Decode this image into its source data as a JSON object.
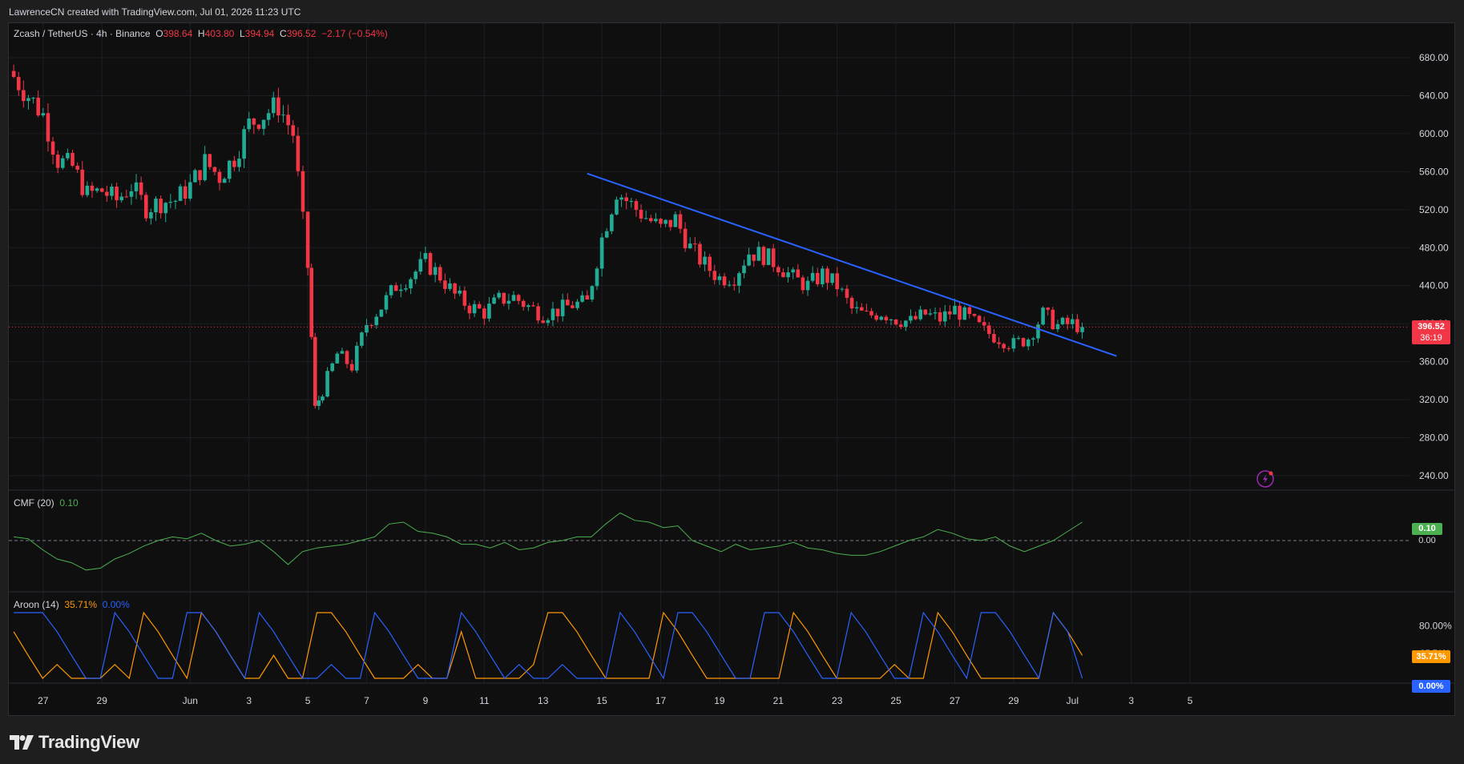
{
  "header": {
    "attribution": "LawrenceCN created with TradingView.com, Jul 01, 2026 11:23 UTC"
  },
  "legend": {
    "symbol": "Zcash / TetherUS · 4h · Binance",
    "o_label": "O",
    "o_value": "398.64",
    "h_label": "H",
    "h_value": "403.80",
    "l_label": "L",
    "l_value": "394.94",
    "c_label": "C",
    "c_value": "396.52",
    "change": "−2.17 (−0.54%)"
  },
  "cmf": {
    "label": "CMF (20)",
    "value": "0.10"
  },
  "aroon": {
    "label": "Aroon (14)",
    "up_value": "35.71%",
    "down_value": "0.00%"
  },
  "price_badge": {
    "price": "396.52",
    "countdown": "36:19"
  },
  "cmf_badges": {
    "value": "0.10",
    "zero": "0.00"
  },
  "aroon_badges": {
    "up": "35.71%",
    "down": "0.00%",
    "hidden_label": "35.71%"
  },
  "colors": {
    "up": "#22ab94",
    "down": "#f23645",
    "trendline": "#2962ff",
    "cmf": "#4caf50",
    "aroon_up": "#ff9800",
    "aroon_down": "#2962ff",
    "background": "#0f0f0f"
  },
  "footer": {
    "brand": "TradingView",
    "logo_icon": "tradingview-logo-icon"
  },
  "alert_icon": "lightning-alert-icon",
  "chart_data": [
    {
      "type": "candlestick",
      "title": "Zcash / TetherUS · 4h · Binance",
      "ylim": [
        220,
        700
      ],
      "y_ticks": [
        240,
        280,
        320,
        360,
        400,
        440,
        480,
        520,
        560,
        600,
        640,
        680
      ],
      "y_tick_labels": [
        "240.00",
        "280.00",
        "320.00",
        "360.00",
        "400.00",
        "440.00",
        "480.00",
        "520.00",
        "560.00",
        "600.00",
        "640.00",
        "680.00"
      ],
      "x_tick_labels": [
        "27",
        "29",
        "Jun",
        "3",
        "5",
        "7",
        "9",
        "11",
        "13",
        "15",
        "17",
        "19",
        "21",
        "23",
        "25",
        "27",
        "29",
        "Jul",
        "3",
        "5"
      ],
      "x_tick_dates": [
        "2026-05-27",
        "2026-05-29",
        "2026-06-01",
        "2026-06-03",
        "2026-06-05",
        "2026-06-07",
        "2026-06-09",
        "2026-06-11",
        "2026-06-13",
        "2026-06-15",
        "2026-06-17",
        "2026-06-19",
        "2026-06-21",
        "2026-06-23",
        "2026-06-25",
        "2026-06-27",
        "2026-06-29",
        "2026-07-01",
        "2026-07-03",
        "2026-07-05"
      ],
      "current_price": 396.52,
      "trendline": {
        "start": [
          "2026-06-14T12:00",
          558
        ],
        "end": [
          "2026-07-02T12:00",
          366
        ]
      },
      "closes": [
        [
          "2026-05-26T00:00",
          660
        ],
        [
          "2026-05-26T12:00",
          640
        ],
        [
          "2026-05-27T00:00",
          620
        ],
        [
          "2026-05-27T12:00",
          572
        ],
        [
          "2026-05-28T00:00",
          565
        ],
        [
          "2026-05-28T12:00",
          536
        ],
        [
          "2026-05-29T00:00",
          540
        ],
        [
          "2026-05-29T12:00",
          530
        ],
        [
          "2026-05-30T00:00",
          545
        ],
        [
          "2026-05-30T12:00",
          522
        ],
        [
          "2026-05-31T00:00",
          528
        ],
        [
          "2026-05-31T12:00",
          530
        ],
        [
          "2026-06-01T00:00",
          545
        ],
        [
          "2026-06-01T12:00",
          570
        ],
        [
          "2026-06-02T00:00",
          555
        ],
        [
          "2026-06-02T12:00",
          575
        ],
        [
          "2026-06-03T00:00",
          610
        ],
        [
          "2026-06-03T12:00",
          620
        ],
        [
          "2026-06-04T00:00",
          630
        ],
        [
          "2026-06-04T12:00",
          600
        ],
        [
          "2026-06-05T00:00",
          460
        ],
        [
          "2026-06-05T06:00",
          310
        ],
        [
          "2026-06-05T12:00",
          330
        ],
        [
          "2026-06-06T00:00",
          368
        ],
        [
          "2026-06-06T12:00",
          355
        ],
        [
          "2026-06-07T00:00",
          400
        ],
        [
          "2026-06-07T12:00",
          418
        ],
        [
          "2026-06-08T00:00",
          440
        ],
        [
          "2026-06-08T12:00",
          450
        ],
        [
          "2026-06-09T00:00",
          465
        ],
        [
          "2026-06-09T12:00",
          450
        ],
        [
          "2026-06-10T00:00",
          430
        ],
        [
          "2026-06-10T12:00",
          418
        ],
        [
          "2026-06-11T00:00",
          412
        ],
        [
          "2026-06-11T12:00",
          425
        ],
        [
          "2026-06-12T00:00",
          428
        ],
        [
          "2026-06-12T12:00",
          418
        ],
        [
          "2026-06-13T00:00",
          410
        ],
        [
          "2026-06-13T12:00",
          414
        ],
        [
          "2026-06-14T00:00",
          420
        ],
        [
          "2026-06-14T12:00",
          422
        ],
        [
          "2026-06-15T00:00",
          490
        ],
        [
          "2026-06-15T12:00",
          540
        ],
        [
          "2026-06-16T00:00",
          525
        ],
        [
          "2026-06-16T12:00",
          512
        ],
        [
          "2026-06-17T00:00",
          500
        ],
        [
          "2026-06-17T12:00",
          510
        ],
        [
          "2026-06-18T00:00",
          480
        ],
        [
          "2026-06-18T12:00",
          462
        ],
        [
          "2026-06-19T00:00",
          448
        ],
        [
          "2026-06-19T12:00",
          450
        ],
        [
          "2026-06-20T00:00",
          475
        ],
        [
          "2026-06-20T12:00",
          472
        ],
        [
          "2026-06-21T00:00",
          462
        ],
        [
          "2026-06-21T12:00",
          448
        ],
        [
          "2026-06-22T00:00",
          440
        ],
        [
          "2026-06-22T12:00",
          452
        ],
        [
          "2026-06-23T00:00",
          440
        ],
        [
          "2026-06-23T12:00",
          415
        ],
        [
          "2026-06-24T00:00",
          408
        ],
        [
          "2026-06-24T12:00",
          412
        ],
        [
          "2026-06-25T00:00",
          405
        ],
        [
          "2026-06-25T12:00",
          402
        ],
        [
          "2026-06-26T00:00",
          410
        ],
        [
          "2026-06-26T12:00",
          405
        ],
        [
          "2026-06-27T00:00",
          415
        ],
        [
          "2026-06-27T12:00",
          405
        ],
        [
          "2026-06-28T00:00",
          392
        ],
        [
          "2026-06-28T12:00",
          385
        ],
        [
          "2026-06-29T00:00",
          378
        ],
        [
          "2026-06-29T12:00",
          385
        ],
        [
          "2026-06-30T00:00",
          410
        ],
        [
          "2026-06-30T12:00",
          398
        ],
        [
          "2026-07-01T00:00",
          400
        ],
        [
          "2026-07-01T08:00",
          396.52
        ]
      ]
    },
    {
      "type": "line",
      "title": "CMF (20)",
      "ylim": [
        -0.2,
        0.2
      ],
      "y_tick_labels": [
        "0.00"
      ],
      "series": [
        {
          "name": "CMF (20)",
          "values": [
            0.02,
            0.01,
            -0.05,
            -0.1,
            -0.12,
            -0.16,
            -0.15,
            -0.1,
            -0.07,
            -0.03,
            0.0,
            0.02,
            0.01,
            0.04,
            0.0,
            -0.03,
            -0.02,
            0.0,
            -0.06,
            -0.13,
            -0.06,
            -0.04,
            -0.03,
            -0.02,
            0.0,
            0.02,
            0.09,
            0.1,
            0.05,
            0.04,
            0.02,
            -0.02,
            -0.02,
            -0.04,
            -0.01,
            -0.05,
            -0.04,
            -0.01,
            0.0,
            0.02,
            0.02,
            0.09,
            0.15,
            0.11,
            0.1,
            0.07,
            0.08,
            0.0,
            -0.03,
            -0.06,
            -0.02,
            -0.05,
            -0.04,
            -0.03,
            -0.01,
            -0.04,
            -0.05,
            -0.07,
            -0.08,
            -0.08,
            -0.06,
            -0.03,
            0.0,
            0.02,
            0.06,
            0.04,
            0.01,
            0.0,
            0.02,
            -0.03,
            -0.06,
            -0.03,
            0.0,
            0.05,
            0.1
          ]
        }
      ]
    },
    {
      "type": "line",
      "title": "Aroon (14)",
      "ylim": [
        0,
        100
      ],
      "y_tick_labels": [
        "80.00%"
      ],
      "series": [
        {
          "name": "Aroon Up",
          "values": [
            71,
            35,
            0,
            21,
            0,
            0,
            0,
            21,
            0,
            100,
            71,
            35,
            0,
            100,
            71,
            35,
            0,
            0,
            35,
            0,
            0,
            100,
            100,
            71,
            35,
            0,
            0,
            0,
            21,
            0,
            0,
            71,
            0,
            0,
            0,
            0,
            21,
            100,
            100,
            71,
            35,
            0,
            0,
            0,
            0,
            100,
            71,
            35,
            0,
            0,
            0,
            0,
            0,
            0,
            100,
            71,
            35,
            0,
            0,
            0,
            0,
            21,
            0,
            0,
            100,
            71,
            35,
            0,
            0,
            0,
            0,
            0,
            100,
            71,
            35
          ]
        },
        {
          "name": "Aroon Down",
          "values": [
            100,
            100,
            100,
            71,
            35,
            0,
            0,
            100,
            71,
            35,
            0,
            0,
            100,
            100,
            71,
            35,
            0,
            100,
            71,
            35,
            0,
            0,
            21,
            0,
            0,
            100,
            71,
            35,
            0,
            0,
            0,
            100,
            71,
            35,
            0,
            21,
            0,
            0,
            21,
            0,
            0,
            0,
            100,
            71,
            35,
            0,
            100,
            100,
            71,
            35,
            0,
            0,
            100,
            100,
            71,
            35,
            0,
            0,
            100,
            71,
            35,
            0,
            0,
            100,
            71,
            35,
            0,
            100,
            100,
            71,
            35,
            0,
            100,
            71,
            0
          ]
        }
      ]
    }
  ]
}
